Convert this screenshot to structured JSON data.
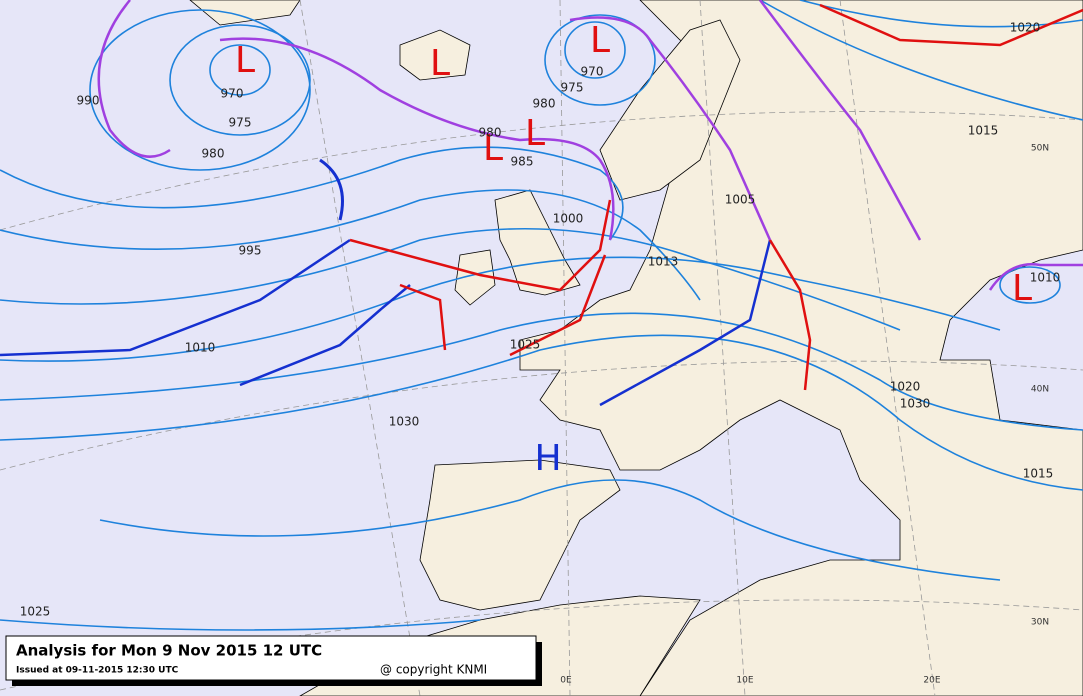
{
  "centers": [
    "L",
    "L",
    "L",
    "L",
    "L",
    "L",
    "H"
  ],
  "isobar_labels": [
    "990",
    "970",
    "975",
    "980",
    "980",
    "985",
    "975",
    "970",
    "980",
    "1000",
    "995",
    "1010",
    "1025",
    "1030",
    "1013",
    "1005",
    "1015",
    "1020",
    "1020",
    "1015",
    "1010",
    "1025",
    "1030"
  ],
  "grid_labels": [
    "50N",
    "40N",
    "30N",
    "0E",
    "10E",
    "20E"
  ],
  "footer": {
    "title": "Analysis for Mon 9 Nov 2015 12 UTC",
    "issued": "Issued at 09-11-2015 12:30 UTC",
    "copyright": "@ copyright KNMI"
  }
}
